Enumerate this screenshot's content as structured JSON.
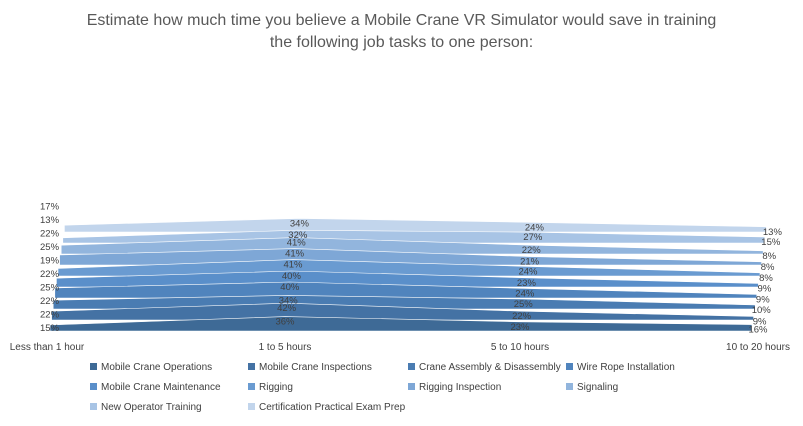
{
  "chart_data": {
    "type": "area",
    "title_lines": [
      "Estimate how much time you believe a Mobile Crane VR Simulator would save in training",
      "the following job tasks to one person:"
    ],
    "categories": [
      "Less than 1 hour",
      "1 to 5 hours",
      "5 to 10 hours",
      "10 to 20 hours"
    ],
    "series": [
      {
        "name": "Mobile Crane Operations",
        "values": [
          15,
          36,
          23,
          16
        ],
        "color": "#3e6a96"
      },
      {
        "name": "Mobile Crane Inspections",
        "values": [
          22,
          42,
          22,
          9
        ],
        "color": "#4472a4"
      },
      {
        "name": "Crane Assembly & Disassembly",
        "values": [
          22,
          34,
          25,
          10
        ],
        "color": "#4a7cb2"
      },
      {
        "name": "Wire Rope Installation",
        "values": [
          25,
          40,
          24,
          9
        ],
        "color": "#5084bd"
      },
      {
        "name": "Mobile Crane Maintenance",
        "values": [
          22,
          40,
          23,
          9
        ],
        "color": "#5a8fca"
      },
      {
        "name": "Rigging",
        "values": [
          19,
          41,
          24,
          8
        ],
        "color": "#6a9bd1"
      },
      {
        "name": "Rigging Inspection",
        "values": [
          25,
          41,
          21,
          8
        ],
        "color": "#7ea7d6"
      },
      {
        "name": "Signaling",
        "values": [
          22,
          41,
          22,
          8
        ],
        "color": "#92b5dd"
      },
      {
        "name": "New Operator Training",
        "values": [
          13,
          32,
          27,
          15
        ],
        "color": "#a8c4e5"
      },
      {
        "name": "Certification Practical Exam Prep",
        "values": [
          17,
          34,
          24,
          13
        ],
        "color": "#c2d5ec"
      }
    ],
    "value_suffix": "%"
  }
}
